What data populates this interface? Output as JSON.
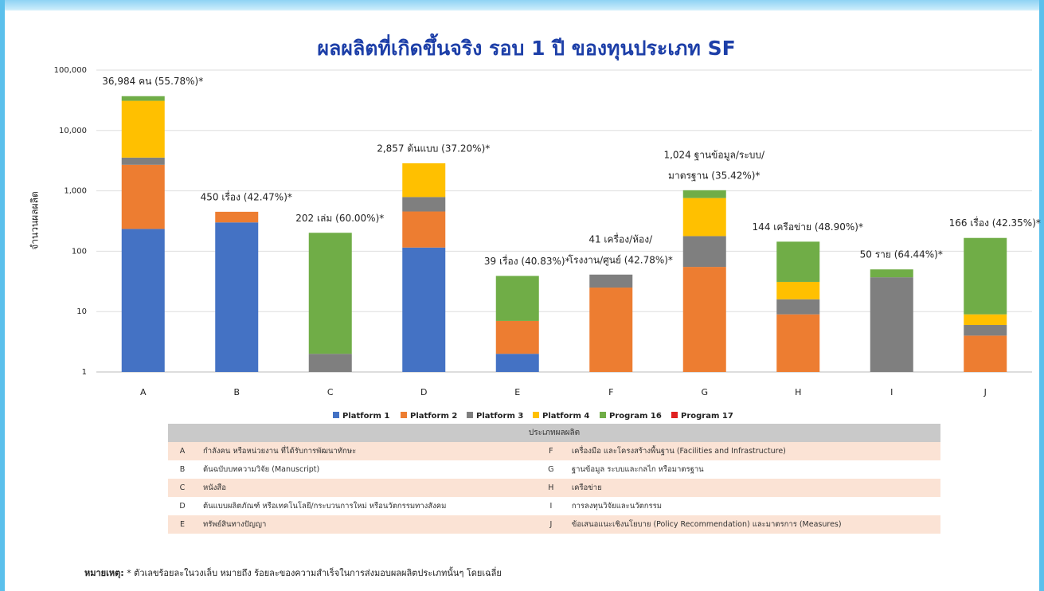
{
  "chart_data": {
    "type": "bar",
    "stacked": true,
    "log_scale": true,
    "grid": true,
    "title": "ผลผลิตที่เกิดขึ้นจริง รอบ 1 ปี ของทุนประเภท SF",
    "y_label": "จำนวนผลผลิต",
    "categories": [
      "A",
      "B",
      "C",
      "D",
      "E",
      "F",
      "G",
      "H",
      "I",
      "J"
    ],
    "ylim": [
      1,
      100000
    ],
    "yticks": [
      1,
      10,
      100,
      {
        "value": 1000,
        "label": "1,000"
      },
      {
        "value": 10000,
        "label": "10,000"
      },
      {
        "value": 100000,
        "label": "100,000"
      }
    ],
    "series": [
      {
        "name": "Platform 1",
        "color": "#4472c4",
        "values": [
          234,
          300,
          null,
          115,
          2,
          null,
          null,
          null,
          null,
          null
        ]
      },
      {
        "name": "Platform 2",
        "color": "#ed7d31",
        "values": [
          2470,
          150,
          null,
          340,
          5,
          25,
          55,
          9,
          null,
          4
        ]
      },
      {
        "name": "Platform 3",
        "color": "#7f7f7f",
        "values": [
          850,
          null,
          2,
          335,
          null,
          16,
          123,
          7,
          37,
          2
        ]
      },
      {
        "name": "Platform 4",
        "color": "#ffc000",
        "values": [
          27430,
          null,
          null,
          2067,
          null,
          null,
          582,
          15,
          null,
          3
        ]
      },
      {
        "name": "Program 16",
        "color": "#70ad47",
        "values": [
          6000,
          null,
          200,
          null,
          32,
          null,
          264,
          113,
          13,
          157
        ]
      },
      {
        "name": "Program 17",
        "color": "#e02020",
        "values": [
          null,
          null,
          null,
          null,
          null,
          null,
          null,
          null,
          null,
          null
        ]
      }
    ],
    "annotations": [
      [
        "36,984 คน (55.78%)*"
      ],
      [
        "450 เรื่อง (42.47%)*"
      ],
      [
        "202 เล่ม (60.00%)*"
      ],
      [
        "2,857 ต้นแบบ (37.20%)*"
      ],
      [
        "39 เรื่อง (40.83%)*"
      ],
      [
        "41 เครื่อง/ห้อง/",
        "โรงงาน/ศูนย์ (42.78%)*"
      ],
      [
        "1,024 ฐานข้อมูล/ระบบ/",
        "มาตรฐาน (35.42%)*"
      ],
      [
        "144 เครือข่าย (48.90%)*"
      ],
      [
        "50 ราย (64.44%)*"
      ],
      [
        "166 เรื่อง (42.35%)*"
      ]
    ]
  },
  "table": {
    "header": "ประเภทผลผลิต",
    "rows": [
      [
        "A",
        "กำลังคน หรือหน่วยงาน ที่ได้รับการพัฒนาทักษะ",
        "F",
        "เครื่องมือ และโครงสร้างพื้นฐาน (Facilities and Infrastructure)"
      ],
      [
        "B",
        "ต้นฉบับบทความวิจัย (Manuscript)",
        "G",
        "ฐานข้อมูล ระบบและกลไก หรือมาตรฐาน"
      ],
      [
        "C",
        "หนังสือ",
        "H",
        "เครือข่าย"
      ],
      [
        "D",
        "ต้นแบบผลิตภัณฑ์ หรือเทคโนโลยี/กระบวนการใหม่ หรือนวัตกรรมทางสังคม",
        "I",
        "การลงทุนวิจัยและนวัตกรรม"
      ],
      [
        "E",
        "ทรัพย์สินทางปัญญา",
        "J",
        "ข้อเสนอแนะเชิงนโยบาย (Policy Recommendation) และมาตรการ (Measures)"
      ]
    ]
  },
  "note": {
    "label": "หมายเหตุ:",
    "text": "* ตัวเลขร้อยละในวงเล็บ หมายถึง ร้อยละของความสำเร็จในการส่งมอบผลผลิตประเภทนั้นๆ โดยเฉลี่ย"
  }
}
